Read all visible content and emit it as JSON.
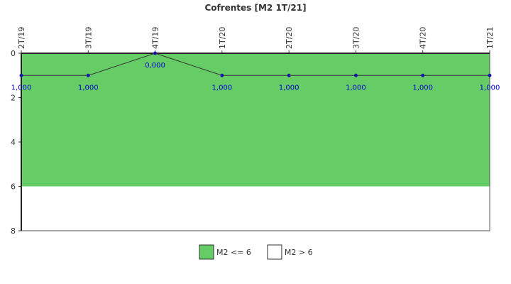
{
  "chart_data": {
    "type": "line",
    "title": "Cofrentes [M2 1T/21]",
    "categories": [
      "2T/19",
      "3T/19",
      "4T/19",
      "1T/20",
      "2T/20",
      "3T/20",
      "4T/20",
      "1T/21"
    ],
    "values": [
      1,
      1,
      0,
      1,
      1,
      1,
      1,
      1
    ],
    "value_labels": [
      "1,000",
      "1,000",
      "0,000",
      "1,000",
      "1,000",
      "1,000",
      "1,000",
      "1,000"
    ],
    "color": "#333333",
    "marker_color": "#1a1aaa",
    "label_color": "#0000cc",
    "ylim": [
      0,
      8
    ],
    "yticks": [
      0,
      2,
      4,
      6,
      8
    ],
    "y_inverted": true,
    "bands": [
      {
        "name": "M2 <= 6",
        "from": 0,
        "to": 6,
        "color": "#66cc66"
      },
      {
        "name": "M2 > 6",
        "from": 6,
        "to": 8,
        "color": "#ffffff"
      }
    ]
  }
}
